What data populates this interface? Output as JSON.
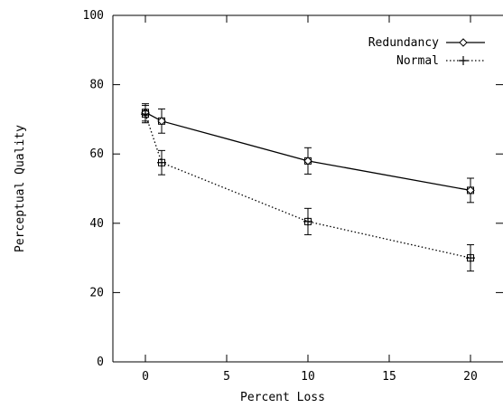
{
  "chart_data": {
    "type": "line",
    "title": "",
    "xlabel": "Percent Loss",
    "ylabel": "Perceptual Quality",
    "xlim": [
      -2,
      22
    ],
    "ylim": [
      0,
      100
    ],
    "xticks": [
      0,
      5,
      10,
      15,
      20
    ],
    "yticks": [
      0,
      20,
      40,
      60,
      80,
      100
    ],
    "grid": false,
    "legend_position": "top-right",
    "series": [
      {
        "name": "Redundancy",
        "line_style": "solid",
        "marker": "diamond",
        "color": "#000000",
        "x": [
          0,
          1,
          10,
          20
        ],
        "y": [
          72,
          69.5,
          58,
          49.5
        ],
        "error": [
          2.5,
          3.5,
          3.8,
          3.5
        ]
      },
      {
        "name": "Normal",
        "line_style": "dotted",
        "marker": "plus",
        "color": "#000000",
        "x": [
          0,
          1,
          10,
          20
        ],
        "y": [
          71.5,
          57.5,
          40.5,
          30
        ],
        "error": [
          2.5,
          3.5,
          3.8,
          3.8
        ]
      }
    ]
  }
}
